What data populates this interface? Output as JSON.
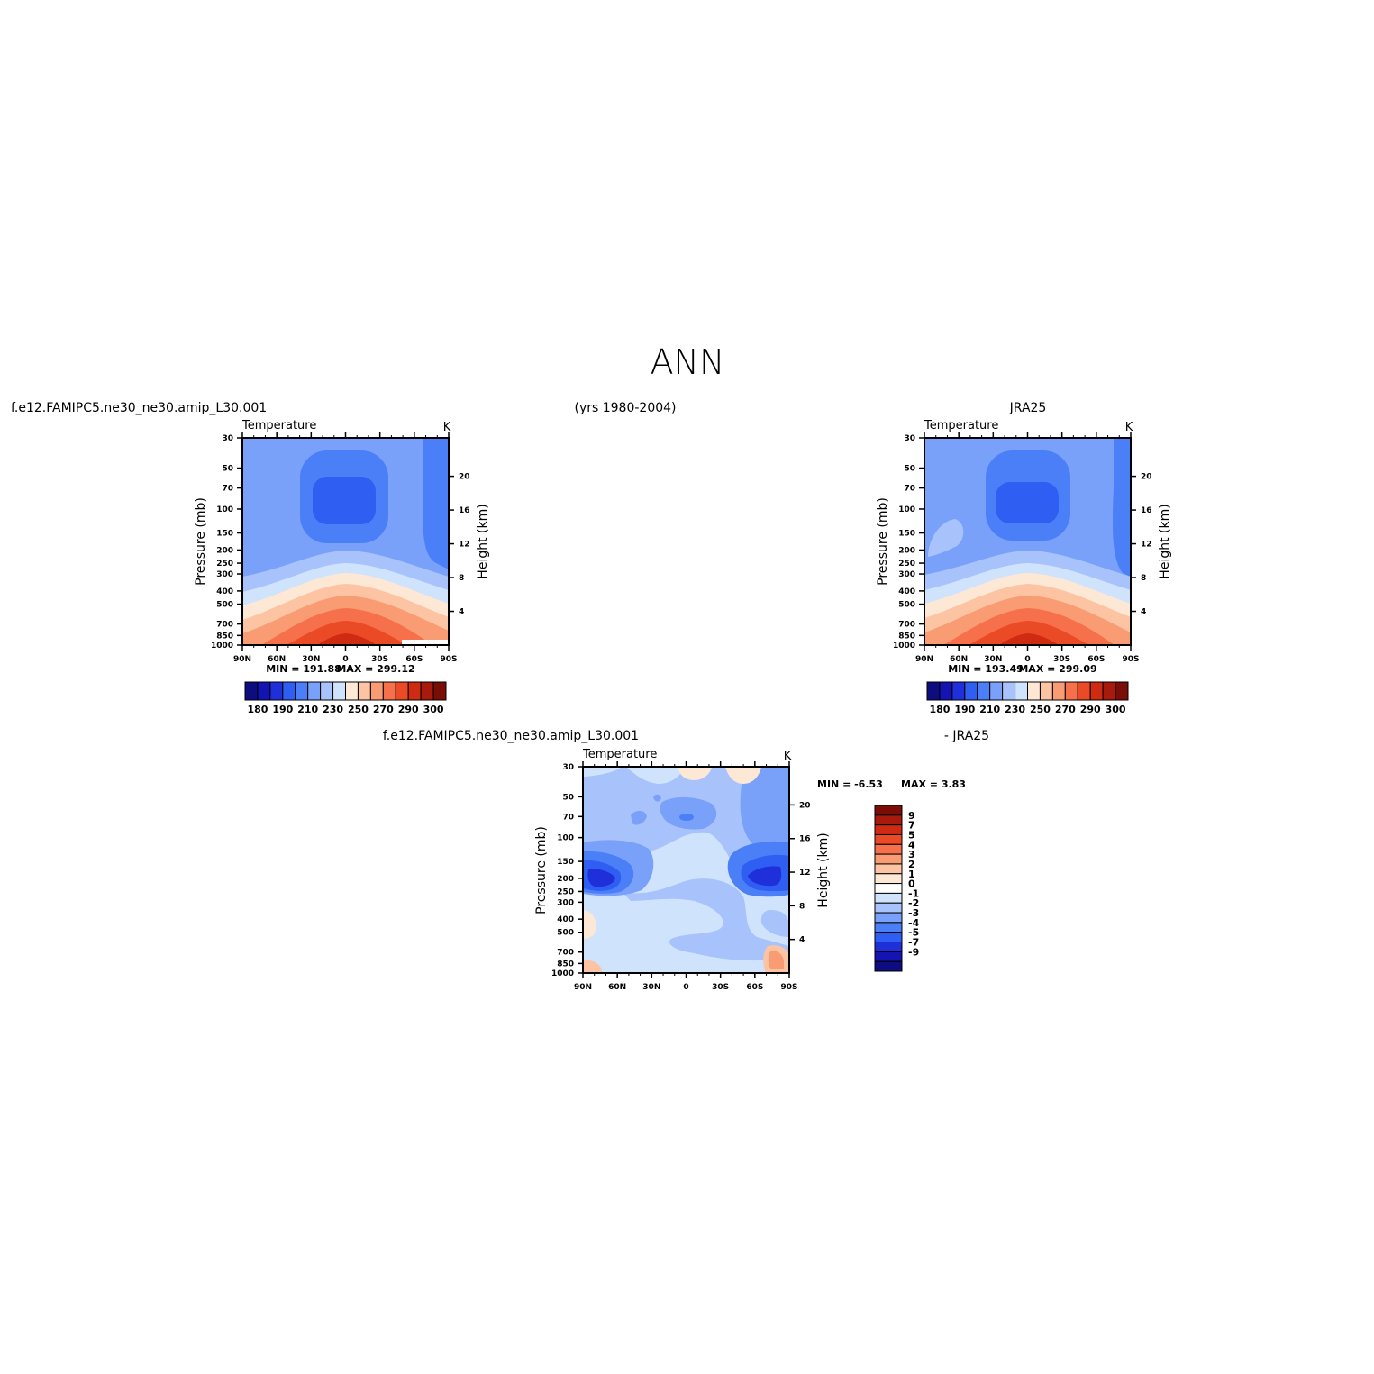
{
  "page_title": "ANN",
  "header": {
    "left": "f.e12.FAMIPC5.ne30_ne30.amip_L30.001",
    "center": "(yrs 1980-2004)",
    "right": "JRA25"
  },
  "diff_header": {
    "left": "f.e12.FAMIPC5.ne30_ne30.amip_L30.001",
    "right": "- JRA25"
  },
  "chart_data": [
    {
      "id": "model",
      "type": "heatmap",
      "subtitle": "Temperature",
      "units": "K",
      "ylabel": "Pressure (mb)",
      "ylabel_right": "Height (km)",
      "x_ticks": [
        "90N",
        "60N",
        "30N",
        "0",
        "30S",
        "60S",
        "90S"
      ],
      "y_ticks": [
        "30",
        "50",
        "70",
        "100",
        "150",
        "200",
        "250",
        "300",
        "400",
        "500",
        "700",
        "850",
        "1000"
      ],
      "y_ticks_right": [
        "20",
        "16",
        "12",
        "8",
        "4"
      ],
      "min_text": "MIN = 191.88",
      "max_text": "MAX = 299.12",
      "min": 191.88,
      "max": 299.12,
      "colorbar_labels": [
        "180",
        "190",
        "210",
        "230",
        "250",
        "270",
        "290",
        "300"
      ],
      "colorbar_colors": [
        "#0d0d80",
        "#1414b3",
        "#1f2fd9",
        "#2e5ef2",
        "#4a7ff7",
        "#7aa1fa",
        "#a8c3fb",
        "#d0e3fd",
        "#fde7d5",
        "#fcc4a2",
        "#f99c74",
        "#f5704b",
        "#eb4a26",
        "#cf2a12",
        "#a81a0c",
        "#7a0e06"
      ]
    },
    {
      "id": "obs",
      "type": "heatmap",
      "subtitle": "Temperature",
      "units": "K",
      "ylabel": "Pressure (mb)",
      "ylabel_right": "Height (km)",
      "x_ticks": [
        "90N",
        "60N",
        "30N",
        "0",
        "30S",
        "60S",
        "90S"
      ],
      "y_ticks": [
        "30",
        "50",
        "70",
        "100",
        "150",
        "200",
        "250",
        "300",
        "400",
        "500",
        "700",
        "850",
        "1000"
      ],
      "y_ticks_right": [
        "20",
        "16",
        "12",
        "8",
        "4"
      ],
      "min_text": "MIN = 193.49",
      "max_text": "MAX = 299.09",
      "min": 193.49,
      "max": 299.09,
      "colorbar_labels": [
        "180",
        "190",
        "210",
        "230",
        "250",
        "270",
        "290",
        "300"
      ],
      "colorbar_colors": [
        "#0d0d80",
        "#1414b3",
        "#1f2fd9",
        "#2e5ef2",
        "#4a7ff7",
        "#7aa1fa",
        "#a8c3fb",
        "#d0e3fd",
        "#fde7d5",
        "#fcc4a2",
        "#f99c74",
        "#f5704b",
        "#eb4a26",
        "#cf2a12",
        "#a81a0c",
        "#7a0e06"
      ]
    },
    {
      "id": "diff",
      "type": "heatmap",
      "subtitle": "Temperature",
      "units": "K",
      "ylabel": "Pressure (mb)",
      "ylabel_right": "Height (km)",
      "x_ticks": [
        "90N",
        "60N",
        "30N",
        "0",
        "30S",
        "60S",
        "90S"
      ],
      "y_ticks": [
        "30",
        "50",
        "70",
        "100",
        "150",
        "200",
        "250",
        "300",
        "400",
        "500",
        "700",
        "850",
        "1000"
      ],
      "y_ticks_right": [
        "20",
        "16",
        "12",
        "8",
        "4"
      ],
      "min_text": "MIN =   -6.53",
      "max_text": "MAX =    3.83",
      "min": -6.53,
      "max": 3.83,
      "colorbar_labels": [
        "9",
        "7",
        "5",
        "4",
        "3",
        "2",
        "1",
        "0",
        "-1",
        "-2",
        "-3",
        "-4",
        "-5",
        "-7",
        "-9"
      ],
      "colorbar_colors": [
        "#7a0e06",
        "#a81a0c",
        "#cf2a12",
        "#eb4a26",
        "#f5704b",
        "#f99c74",
        "#fcc4a2",
        "#fde7d5",
        "#ffffff",
        "#d0e3fd",
        "#a8c3fb",
        "#7aa1fa",
        "#4a7ff7",
        "#2e5ef2",
        "#1f2fd9",
        "#1414b3",
        "#0d0d80"
      ]
    }
  ]
}
